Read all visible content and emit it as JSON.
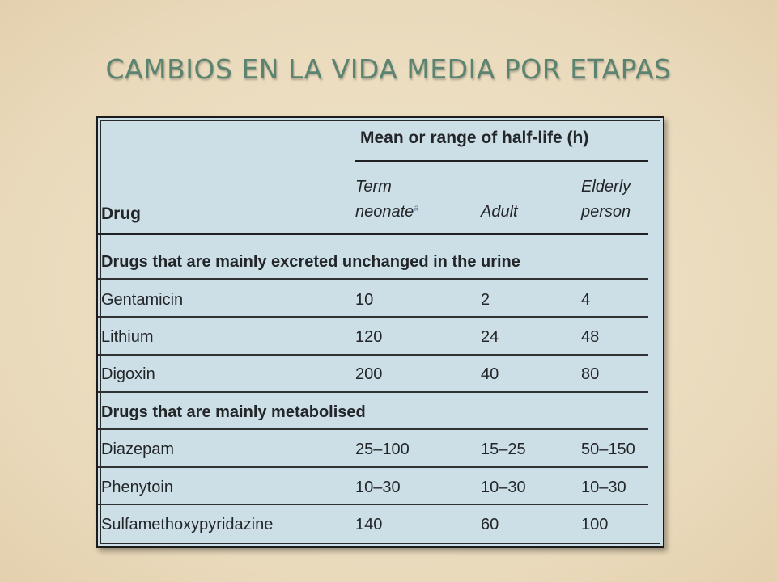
{
  "slide": {
    "title": "CAMBIOS EN LA VIDA MEDIA POR ETAPAS"
  },
  "table": {
    "group_header": "Mean or range of half-life (h)",
    "columns": {
      "drug": "Drug",
      "neonate_line1": "Term",
      "neonate_line2": "neonate",
      "neonate_footnote": "a",
      "adult": "Adult",
      "elderly_line1": "Elderly",
      "elderly_line2": "person"
    },
    "sections": [
      {
        "heading": "Drugs that are mainly excreted unchanged in the urine",
        "rows": [
          {
            "drug": "Gentamicin",
            "neonate": "10",
            "adult": "2",
            "elderly": "4"
          },
          {
            "drug": "Lithium",
            "neonate": "120",
            "adult": "24",
            "elderly": "48"
          },
          {
            "drug": "Digoxin",
            "neonate": "200",
            "adult": "40",
            "elderly": "80"
          }
        ]
      },
      {
        "heading": "Drugs that are mainly metabolised",
        "rows": [
          {
            "drug": "Diazepam",
            "neonate": "25–100",
            "adult": "15–25",
            "elderly": "50–150"
          },
          {
            "drug": "Phenytoin",
            "neonate": "10–30",
            "adult": "10–30",
            "elderly": "10–30"
          },
          {
            "drug": "Sulfamethoxypyridazine",
            "neonate": "140",
            "adult": "60",
            "elderly": "100"
          }
        ]
      }
    ]
  }
}
